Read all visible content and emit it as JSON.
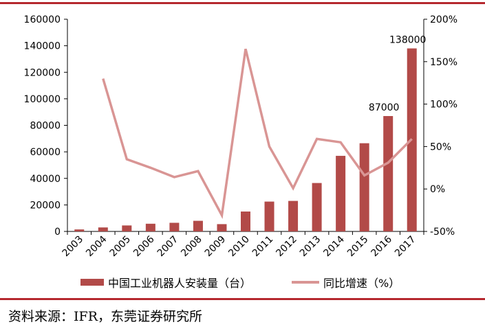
{
  "chart_data": {
    "type": "bar",
    "categories": [
      "2003",
      "2004",
      "2005",
      "2006",
      "2007",
      "2008",
      "2009",
      "2010",
      "2011",
      "2012",
      "2013",
      "2014",
      "2015",
      "2016",
      "2017"
    ],
    "series": [
      {
        "name": "中国工业机器人安装量（台）",
        "axis": "left",
        "type": "bar",
        "color": "#b24a48",
        "values": [
          1500,
          3000,
          4500,
          5800,
          6500,
          8000,
          5500,
          15000,
          22500,
          23000,
          36500,
          57000,
          66500,
          87000,
          138000
        ]
      },
      {
        "name": "同比增速（%）",
        "axis": "right",
        "type": "line",
        "color": "#d99594",
        "values": [
          null,
          130,
          35,
          25,
          14,
          21,
          -31,
          165,
          50,
          1,
          59,
          55,
          16,
          31,
          59
        ]
      }
    ],
    "data_labels": [
      {
        "category": "2016",
        "text": "87000"
      },
      {
        "category": "2017",
        "text": "138000"
      }
    ],
    "left_axis": {
      "ylim": [
        0,
        160000
      ],
      "ticks": [
        "0",
        "20000",
        "40000",
        "60000",
        "80000",
        "100000",
        "120000",
        "140000",
        "160000"
      ]
    },
    "right_axis": {
      "ylim": [
        -50,
        200
      ],
      "ticks": [
        "-50%",
        "0%",
        "50%",
        "100%",
        "150%",
        "200%"
      ]
    },
    "legend": "bottom",
    "grid": false
  },
  "source_text": "资料来源：IFR，东莞证券研究所"
}
